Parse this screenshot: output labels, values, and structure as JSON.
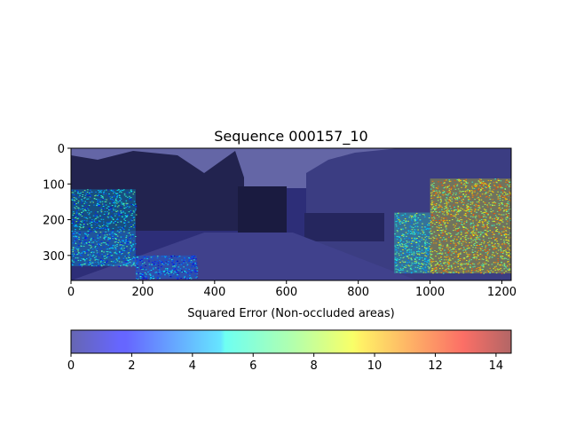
{
  "chart_data": {
    "type": "heatmap",
    "title": "Sequence 000157_10",
    "xlabel": "Squared Error (Non-occluded areas)",
    "ylabel": "",
    "xlim": [
      0,
      1226
    ],
    "ylim": [
      370,
      0
    ],
    "x_ticks": [
      0,
      200,
      400,
      600,
      800,
      1000,
      1200
    ],
    "y_ticks": [
      0,
      100,
      200,
      300
    ],
    "colorbar": {
      "colormap": "jet",
      "alpha": 0.6,
      "range": [
        0,
        14.5
      ],
      "ticks": [
        0,
        2,
        4,
        6,
        8,
        10,
        12,
        14
      ]
    },
    "error_regions": [
      {
        "x": [
          0,
          180
        ],
        "y": [
          115,
          330
        ],
        "level": 4.5
      },
      {
        "x": [
          180,
          350
        ],
        "y": [
          300,
          365
        ],
        "level": 3.5
      },
      {
        "x": [
          900,
          1000
        ],
        "y": [
          180,
          350
        ],
        "level": 6
      },
      {
        "x": [
          1000,
          1226
        ],
        "y": [
          85,
          350
        ],
        "level": 9
      }
    ]
  }
}
